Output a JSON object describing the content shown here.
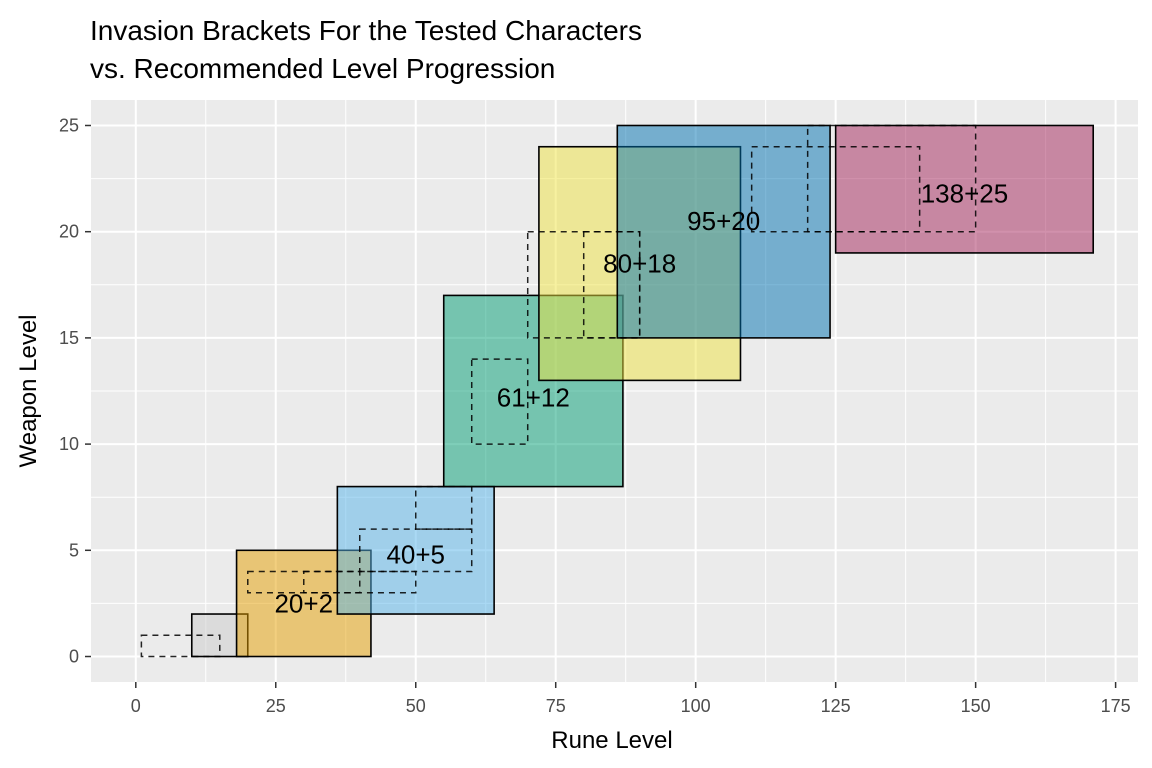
{
  "chart_data": {
    "type": "rect",
    "title_lines": [
      "Invasion Brackets For the Tested Characters",
      "vs. Recommended Level Progression"
    ],
    "xlabel": "Rune Level",
    "ylabel": "Weapon Level",
    "xlim": [
      -8,
      179
    ],
    "ylim": [
      -1.2,
      26.2
    ],
    "x_ticks": [
      0,
      25,
      50,
      75,
      100,
      125,
      150,
      175
    ],
    "y_ticks": [
      0,
      5,
      10,
      15,
      20,
      25
    ],
    "x_tick_labels": [
      "0",
      "25",
      "50",
      "75",
      "100",
      "125",
      "150",
      "175"
    ],
    "y_tick_labels": [
      "0",
      "5",
      "10",
      "15",
      "20",
      "25"
    ],
    "grid": true,
    "brackets": [
      {
        "label": "",
        "xmin": 10,
        "xmax": 20,
        "ymin": 0,
        "ymax": 2,
        "color": "#cccccc"
      },
      {
        "label": "20+2",
        "xmin": 18,
        "xmax": 42,
        "ymin": 0,
        "ymax": 5,
        "color": "#E69F00"
      },
      {
        "label": "40+5",
        "xmin": 36,
        "xmax": 64,
        "ymin": 2,
        "ymax": 8,
        "color": "#56B4E9"
      },
      {
        "label": "61+12",
        "xmin": 55,
        "xmax": 87,
        "ymin": 8,
        "ymax": 17,
        "color": "#009E73"
      },
      {
        "label": "80+18",
        "xmin": 72,
        "xmax": 108,
        "ymin": 13,
        "ymax": 24,
        "color": "#F0E442"
      },
      {
        "label": "95+20",
        "xmin": 86,
        "xmax": 124,
        "ymin": 15,
        "ymax": 25,
        "color": "#0072B2"
      },
      {
        "label": "138+25",
        "xmin": 125,
        "xmax": 171,
        "ymin": 19,
        "ymax": 25,
        "color": "#A3245A"
      }
    ],
    "label_positions": [
      {
        "x": 30,
        "y": 2.5
      },
      {
        "x": 50,
        "y": 4.8
      },
      {
        "x": 71,
        "y": 12.2
      },
      {
        "x": 90,
        "y": 18.5
      },
      {
        "x": 105,
        "y": 20.5
      },
      {
        "x": 148,
        "y": 21.8
      }
    ],
    "recommended_progression": [
      {
        "xmin": 1,
        "xmax": 15,
        "ymin": 0,
        "ymax": 1
      },
      {
        "xmin": 20,
        "xmax": 40,
        "ymin": 3,
        "ymax": 4
      },
      {
        "xmin": 30,
        "xmax": 50,
        "ymin": 3,
        "ymax": 4
      },
      {
        "xmin": 40,
        "xmax": 60,
        "ymin": 4,
        "ymax": 6
      },
      {
        "xmin": 50,
        "xmax": 60,
        "ymin": 6,
        "ymax": 8
      },
      {
        "xmin": 60,
        "xmax": 70,
        "ymin": 10,
        "ymax": 14
      },
      {
        "xmin": 70,
        "xmax": 90,
        "ymin": 15,
        "ymax": 20
      },
      {
        "xmin": 80,
        "xmax": 90,
        "ymin": 15,
        "ymax": 20
      },
      {
        "xmin": 110,
        "xmax": 140,
        "ymin": 20,
        "ymax": 24
      },
      {
        "xmin": 120,
        "xmax": 150,
        "ymin": 20,
        "ymax": 25
      }
    ]
  }
}
